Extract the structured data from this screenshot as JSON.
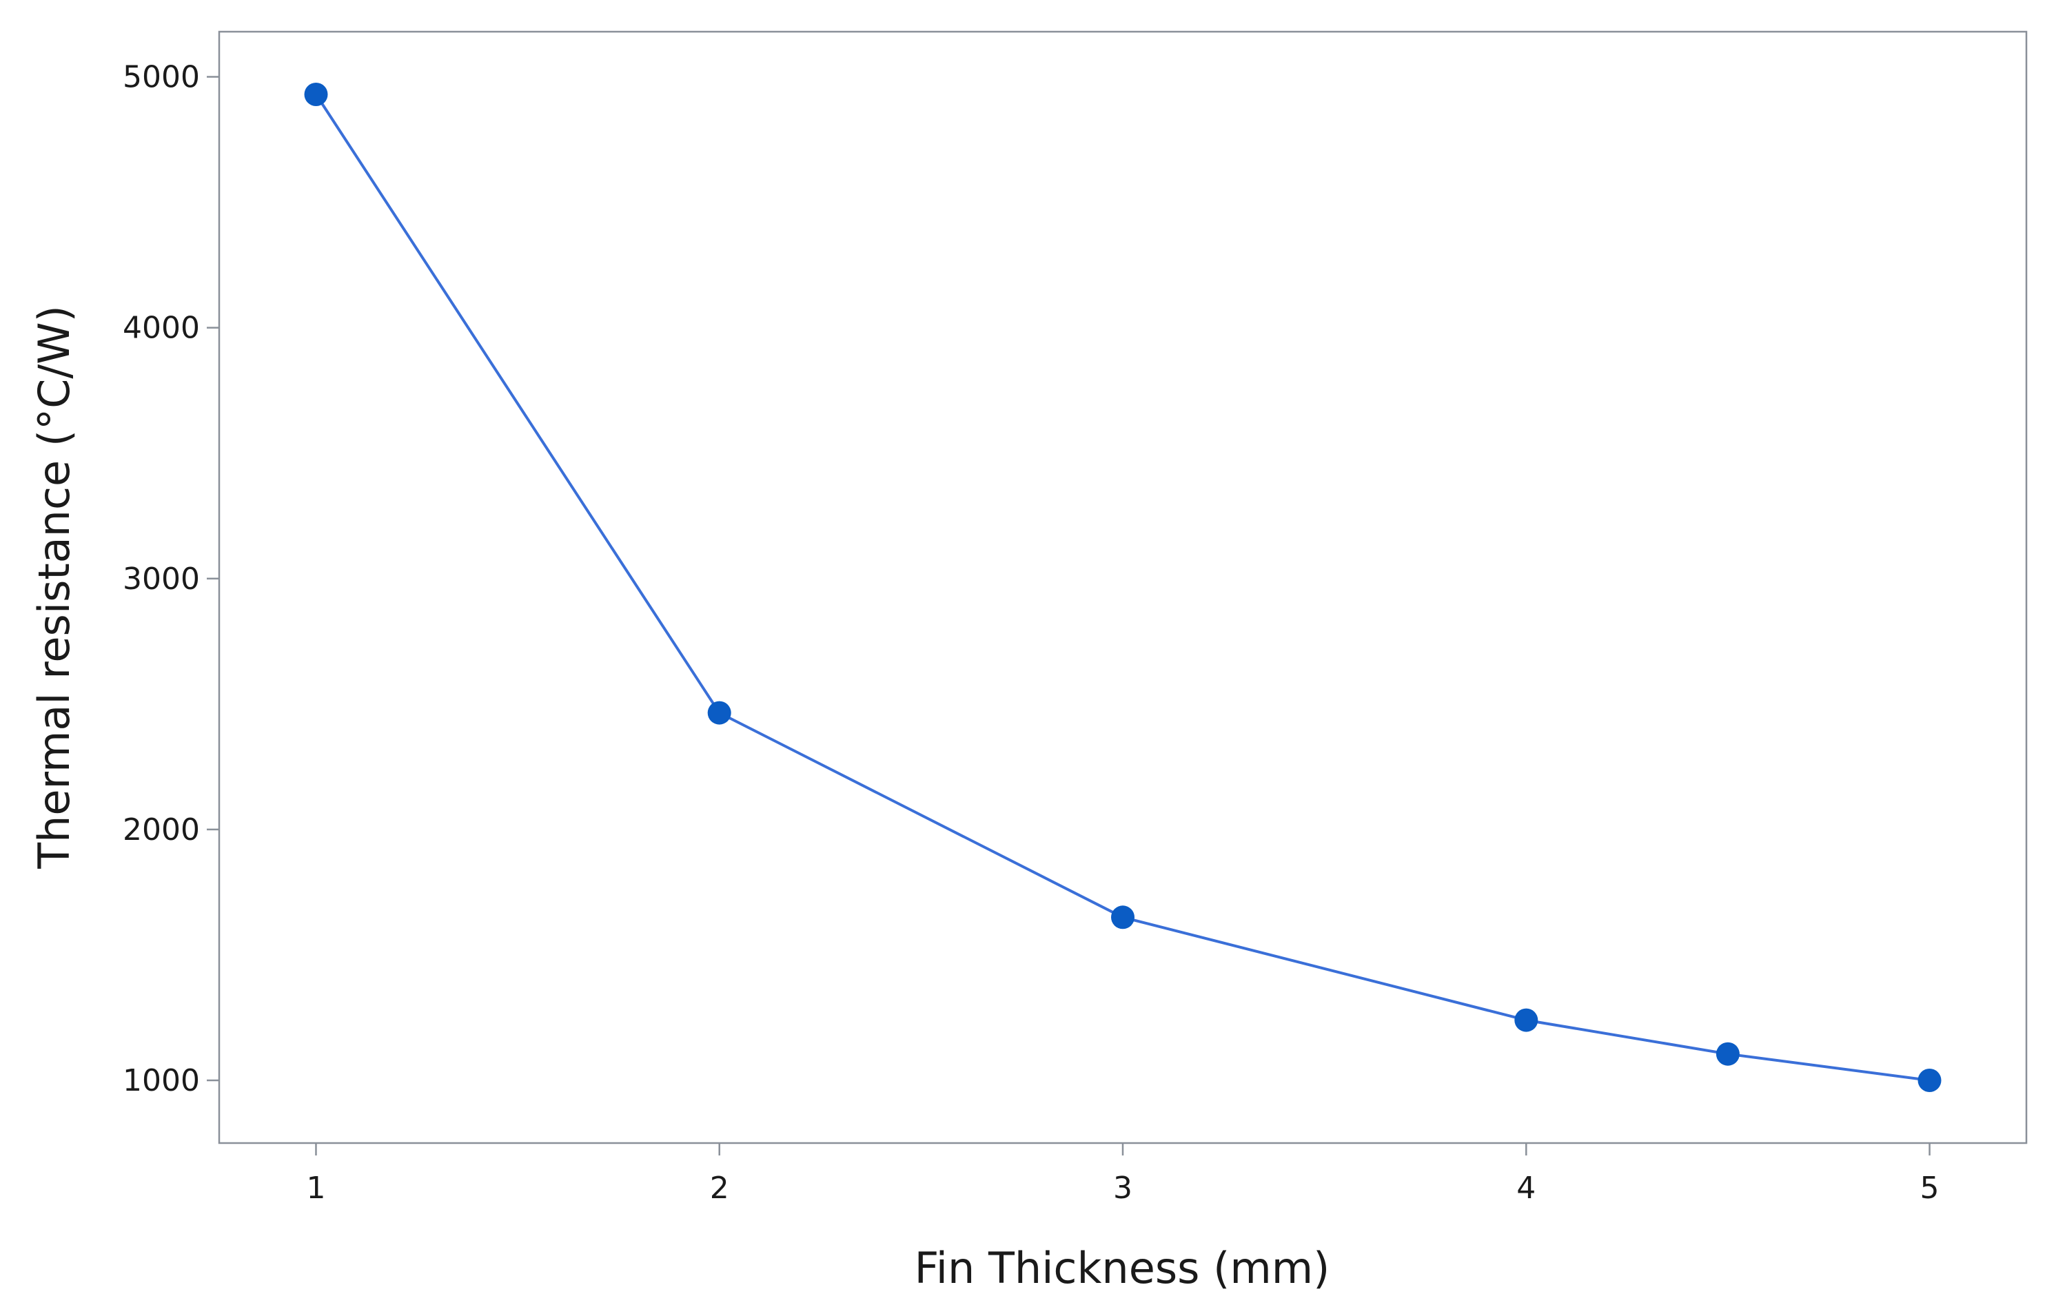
{
  "chart_data": {
    "type": "line",
    "title": "",
    "xlabel": "Fin Thickness (mm)",
    "ylabel": "Thermal resistance (°C/W)",
    "xlim": [
      0.76,
      5.24
    ],
    "ylim": [
      750,
      5180
    ],
    "x_ticks": [
      1,
      2,
      3,
      4,
      5
    ],
    "y_ticks": [
      1000,
      2000,
      3000,
      4000,
      5000
    ],
    "x_tick_labels": [
      "1",
      "2",
      "3",
      "4",
      "5"
    ],
    "y_tick_labels": [
      "1000",
      "2000",
      "3000",
      "4000",
      "5000"
    ],
    "grid": false,
    "series": [
      {
        "x": [
          1,
          2,
          3,
          4,
          4.5,
          5
        ],
        "y": [
          4930,
          2465,
          1650,
          1240,
          1105,
          1000
        ],
        "line_color": "#3a6fd8",
        "marker_color": "#0b5cc4"
      }
    ]
  }
}
